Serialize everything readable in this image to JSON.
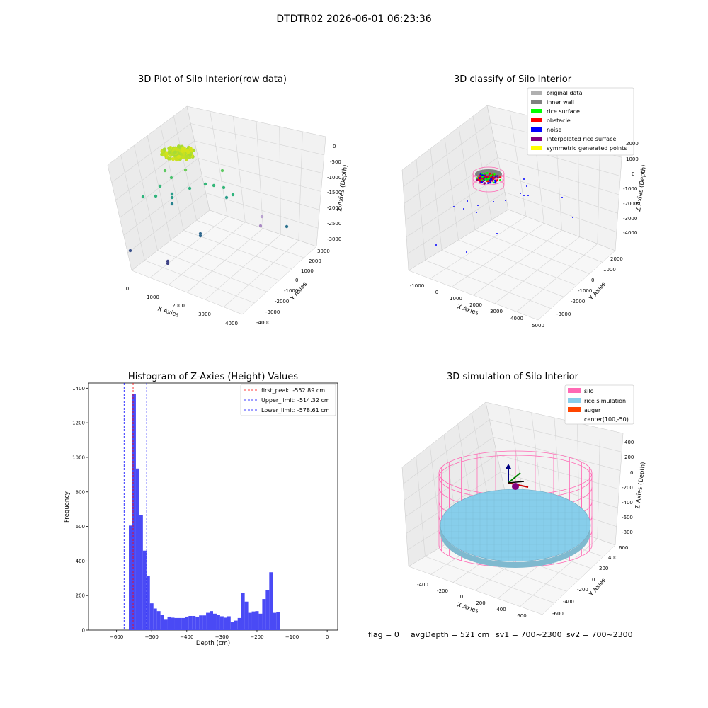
{
  "suptitle": "DTDTR02 2026-06-01 06:23:36",
  "footer": {
    "flag": "flag = 0",
    "avg": "avgDepth = 521 cm",
    "sv1": "sv1 = 700~2300",
    "sv2": "sv2 = 700~2300"
  },
  "chart_data": [
    {
      "type": "scatter3d",
      "title": "3D Plot of Silo Interior(row data)",
      "xlabel": "X Axies",
      "ylabel": "Y Axies",
      "zlabel": "Z Axies (Depth)",
      "xticks": [
        "0",
        "1000",
        "2000",
        "3000",
        "4000"
      ],
      "yticks": [
        "-4000",
        "-3000",
        "-2000",
        "-1000",
        "0",
        "1000",
        "2000",
        "3000"
      ],
      "zticks": [
        "0",
        "-500",
        "-1000",
        "-1500",
        "-2000",
        "-2500",
        "-3000"
      ],
      "grid": true
    },
    {
      "type": "scatter3d",
      "title": "3D classify of Silo Interior",
      "xlabel": "X Axies",
      "ylabel": "Y Axies",
      "zlabel": "Z Axies (Depth)",
      "xticks": [
        "-1000",
        "0",
        "1000",
        "2000",
        "3000",
        "4000",
        "5000"
      ],
      "yticks": [
        "-3000",
        "-2000",
        "-1000",
        "0",
        "1000",
        "2000"
      ],
      "zticks": [
        "2000",
        "1000",
        "0",
        "-1000",
        "-2000",
        "-3000",
        "-4000"
      ],
      "legend_position": "top-right",
      "legend": [
        {
          "label": "original data",
          "color": "#b0b0b0"
        },
        {
          "label": "inner wall",
          "color": "#808080"
        },
        {
          "label": "rice surface",
          "color": "#00ff00"
        },
        {
          "label": "obstacle",
          "color": "#ff0000"
        },
        {
          "label": "noise",
          "color": "#0000ff"
        },
        {
          "label": "interpolated rice surface",
          "color": "#800080"
        },
        {
          "label": "symmetric generated points",
          "color": "#ffff00"
        }
      ],
      "grid": true
    },
    {
      "type": "bar",
      "title": "Histogram of Z-Axies (Height) Values",
      "xlabel": "Depth (cm)",
      "ylabel": "Frequency",
      "xlim": [
        -680,
        30
      ],
      "ylim": [
        0,
        1430
      ],
      "xticks": [
        -600,
        -500,
        -400,
        -300,
        -200,
        -100,
        0
      ],
      "yticks": [
        0,
        200,
        400,
        600,
        800,
        1000,
        1200,
        1400
      ],
      "bar_color": "#4a4af5",
      "bins_left": [
        -575,
        -565,
        -555,
        -545,
        -535,
        -525,
        -515,
        -505,
        -495,
        -485,
        -475,
        -465,
        -455,
        -445,
        -435,
        -425,
        -415,
        -405,
        -395,
        -385,
        -375,
        -365,
        -355,
        -345,
        -335,
        -325,
        -315,
        -305,
        -295,
        -285,
        -275,
        -265,
        -255,
        -245,
        -235,
        -225,
        -215,
        -205,
        -195,
        -185,
        -175,
        -165,
        -155,
        -145,
        -135,
        -125,
        -115,
        -105,
        -95,
        -85,
        -75,
        -65,
        -55,
        -45,
        -35,
        -25,
        -15,
        -5
      ],
      "bin_width": 10,
      "values": [
        0,
        605,
        1365,
        935,
        665,
        460,
        315,
        155,
        125,
        110,
        90,
        60,
        78,
        72,
        70,
        70,
        70,
        78,
        82,
        82,
        78,
        85,
        85,
        100,
        110,
        95,
        90,
        80,
        72,
        80,
        45,
        55,
        70,
        215,
        165,
        100,
        108,
        110,
        95,
        180,
        230,
        335,
        100,
        105,
        0,
        0,
        0,
        0,
        0,
        0,
        0,
        0,
        0,
        0,
        0,
        0,
        0,
        0
      ],
      "vlines": [
        {
          "label": "first_peak: -552.89 cm",
          "x": -552.89,
          "color": "#ff0000"
        },
        {
          "label": "Upper_limit: -514.32 cm",
          "x": -514.32,
          "color": "#0000ff"
        },
        {
          "label": "Lower_limit: -578.61 cm",
          "x": -578.61,
          "color": "#0000ff"
        }
      ],
      "legend_position": "top-right"
    },
    {
      "type": "surface3d",
      "title": "3D simulation of Silo Interior",
      "xlabel": "X Axies",
      "ylabel": "Y Axies",
      "zlabel": "Z Axies (Depth)",
      "xticks": [
        "-400",
        "-200",
        "0",
        "200",
        "400",
        "600"
      ],
      "yticks": [
        "-600",
        "-400",
        "-200",
        "0",
        "200",
        "400",
        "600"
      ],
      "zticks": [
        "400",
        "200",
        "0",
        "-200",
        "-400",
        "-600",
        "-800"
      ],
      "legend_position": "top-right",
      "legend": [
        {
          "label": "silo",
          "color": "#ff69b4"
        },
        {
          "label": "rice simulation",
          "color": "#87ceeb"
        },
        {
          "label": "auger",
          "color": "#ff4500"
        },
        {
          "label": "center(100,-50)",
          "color": ""
        }
      ],
      "grid": true
    }
  ]
}
